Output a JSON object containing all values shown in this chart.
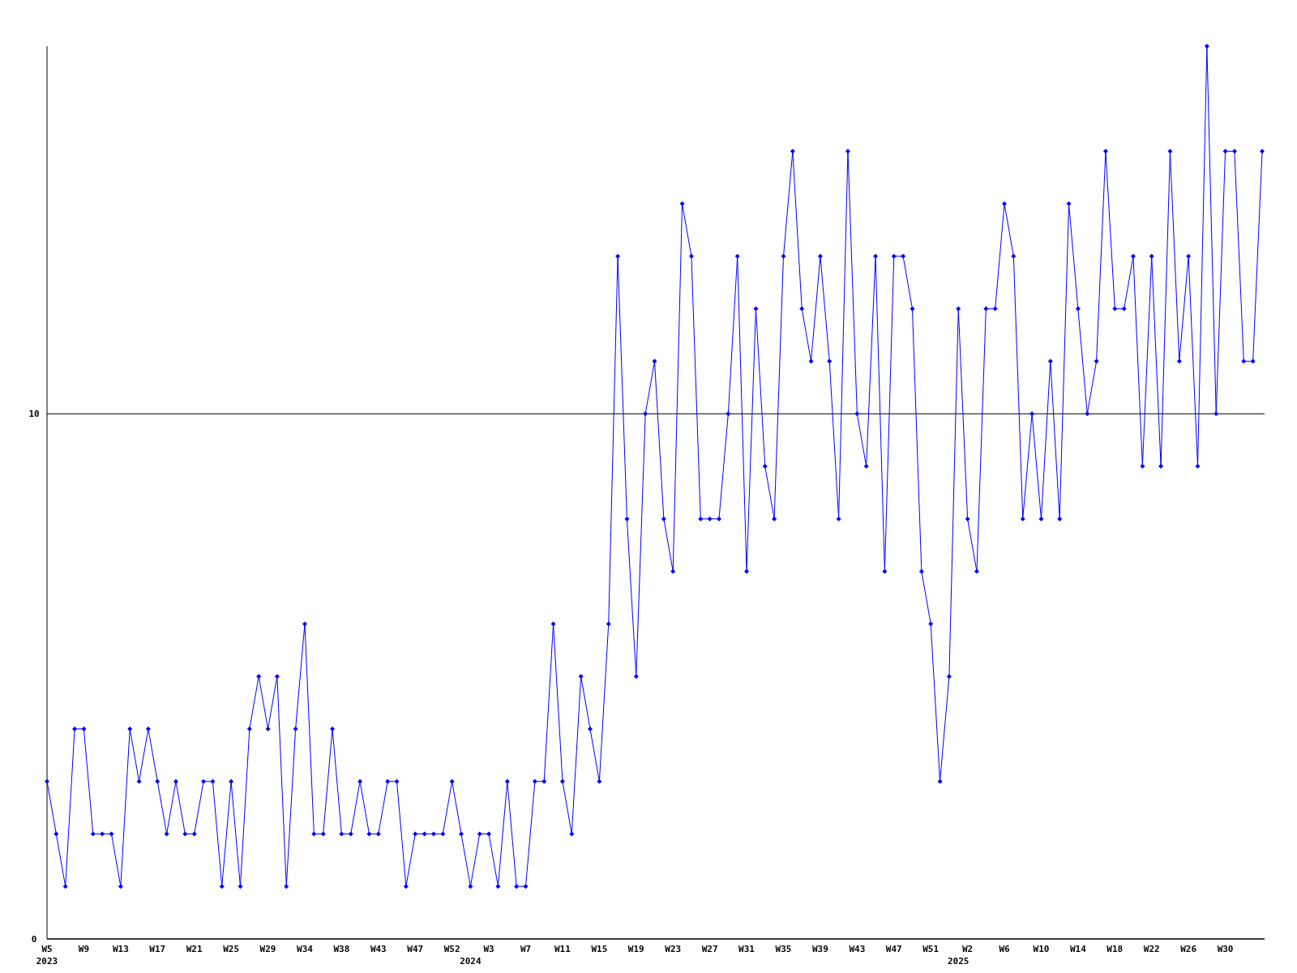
{
  "chart_data": {
    "type": "line",
    "categories": [
      "W5\n2023",
      null,
      null,
      null,
      "W9",
      null,
      null,
      null,
      "W13",
      null,
      null,
      null,
      "W17",
      null,
      null,
      null,
      "W21",
      null,
      null,
      null,
      "W25",
      null,
      null,
      null,
      "W29",
      null,
      null,
      null,
      "W34",
      null,
      null,
      null,
      "W38",
      null,
      null,
      null,
      "W43",
      null,
      null,
      null,
      "W47",
      null,
      null,
      null,
      "W52",
      null,
      "\n2024",
      null,
      "W3",
      null,
      null,
      null,
      "W7",
      null,
      null,
      null,
      "W11",
      null,
      null,
      null,
      "W15",
      null,
      null,
      null,
      "W19",
      null,
      null,
      null,
      "W23",
      null,
      null,
      null,
      "W27",
      null,
      null,
      null,
      "W31",
      null,
      null,
      null,
      "W35",
      null,
      null,
      null,
      "W39",
      null,
      null,
      null,
      "W43",
      null,
      null,
      null,
      "W47",
      null,
      null,
      null,
      "W51",
      null,
      null,
      "\n2025",
      "W2",
      null,
      null,
      null,
      "W6",
      null,
      null,
      null,
      "W10",
      null,
      null,
      null,
      "W14",
      null,
      null,
      null,
      "W18",
      null,
      null,
      null,
      "W22",
      null,
      null,
      null,
      "W26",
      null,
      null,
      null,
      "W30",
      null,
      null,
      null,
      null
    ],
    "series": [
      {
        "color": "#0000ff",
        "values": [
          3,
          2,
          1,
          4,
          4,
          2,
          2,
          2,
          1,
          4,
          3,
          4,
          3,
          2,
          3,
          2,
          2,
          3,
          3,
          1,
          3,
          1,
          4,
          5,
          4,
          5,
          1,
          4,
          6,
          2,
          2,
          4,
          2,
          2,
          3,
          2,
          2,
          3,
          3,
          1,
          2,
          2,
          2,
          2,
          3,
          2,
          1,
          2,
          2,
          1,
          3,
          1,
          1,
          3,
          3,
          6,
          3,
          2,
          5,
          4,
          3,
          6,
          13,
          8,
          5,
          10,
          11,
          8,
          7,
          14,
          13,
          8,
          8,
          8,
          10,
          13,
          7,
          12,
          9,
          8,
          13,
          15,
          12,
          11,
          13,
          11,
          8,
          15,
          10,
          9,
          13,
          7,
          13,
          13,
          12,
          7,
          6,
          3,
          5,
          12,
          8,
          7,
          12,
          12,
          14,
          13,
          8,
          10,
          8,
          11,
          8,
          14,
          12,
          10,
          11,
          15,
          12,
          12,
          13,
          9,
          13,
          9,
          15,
          11,
          13,
          9,
          17,
          10,
          15,
          15,
          11,
          11,
          15
        ]
      }
    ],
    "ylim": [
      0,
      17
    ],
    "yticks": [
      0,
      10
    ],
    "grid": "y",
    "marker": "diamond",
    "line_style": "solid"
  }
}
